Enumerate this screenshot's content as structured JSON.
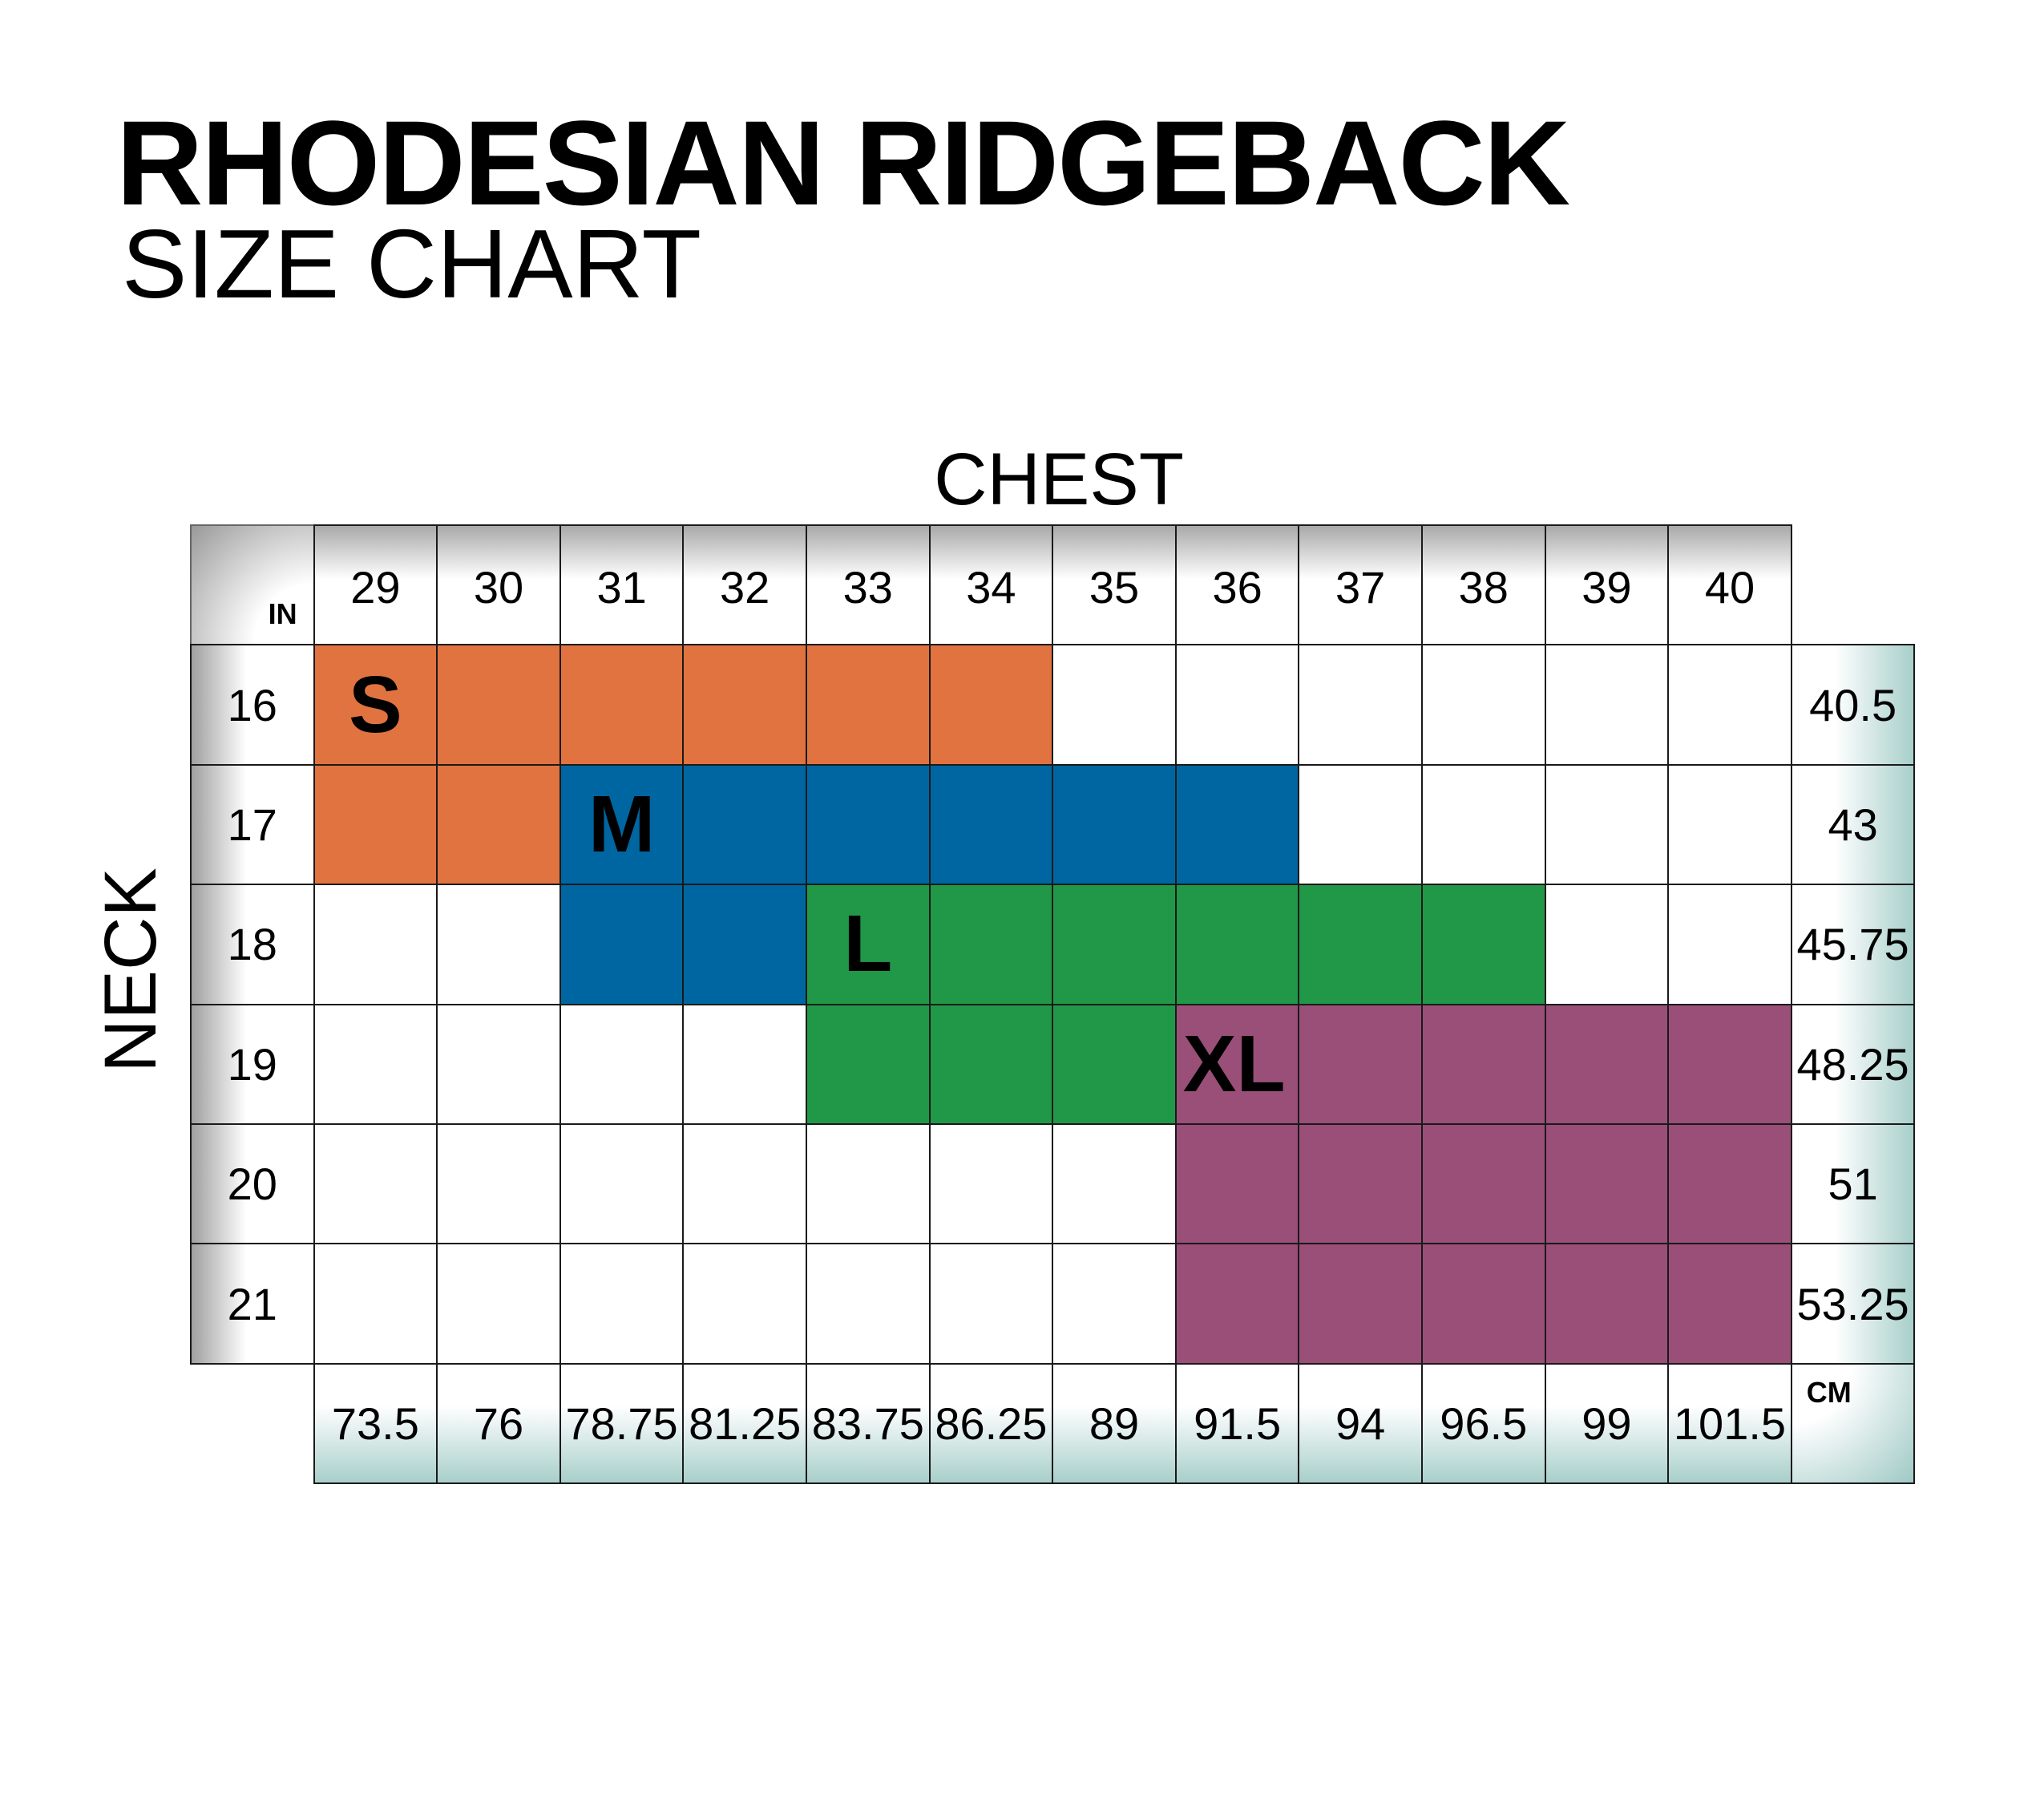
{
  "title": "RHODESIAN RIDGEBACK",
  "subtitle": "SIZE CHART",
  "chart_data": {
    "type": "table",
    "title": "RHODESIAN RIDGEBACK",
    "subtitle": "SIZE CHART",
    "xlabel": "CHEST",
    "ylabel": "NECK",
    "unit_in": "IN",
    "unit_cm": "CM",
    "chest_in": [
      "29",
      "30",
      "31",
      "32",
      "33",
      "34",
      "35",
      "36",
      "37",
      "38",
      "39",
      "40"
    ],
    "chest_cm": [
      "73.5",
      "76",
      "78.75",
      "81.25",
      "83.75",
      "86.25",
      "89",
      "91.5",
      "94",
      "96.5",
      "99",
      "101.5"
    ],
    "neck_in": [
      "16",
      "17",
      "18",
      "19",
      "20",
      "21"
    ],
    "neck_cm": [
      "40.5",
      "43",
      "45.75",
      "48.25",
      "51",
      "53.25"
    ],
    "sizes": [
      {
        "label": "S",
        "color": "#e07340",
        "cells": {
          "16": [
            "29",
            "30",
            "31",
            "32",
            "33",
            "34"
          ],
          "17": [
            "29",
            "30"
          ]
        }
      },
      {
        "label": "M",
        "color": "#0066a1",
        "cells": {
          "17": [
            "31",
            "32",
            "33",
            "34",
            "35",
            "36"
          ],
          "18": [
            "31",
            "32"
          ]
        }
      },
      {
        "label": "L",
        "color": "#219848",
        "cells": {
          "18": [
            "33",
            "34",
            "35",
            "36",
            "37",
            "38"
          ],
          "19": [
            "33",
            "34",
            "35"
          ]
        }
      },
      {
        "label": "XL",
        "color": "#9a4f78",
        "cells": {
          "19": [
            "36",
            "37",
            "38",
            "39",
            "40"
          ],
          "20": [
            "36",
            "37",
            "38",
            "39",
            "40"
          ],
          "21": [
            "36",
            "37",
            "38",
            "39",
            "40"
          ]
        }
      }
    ]
  }
}
